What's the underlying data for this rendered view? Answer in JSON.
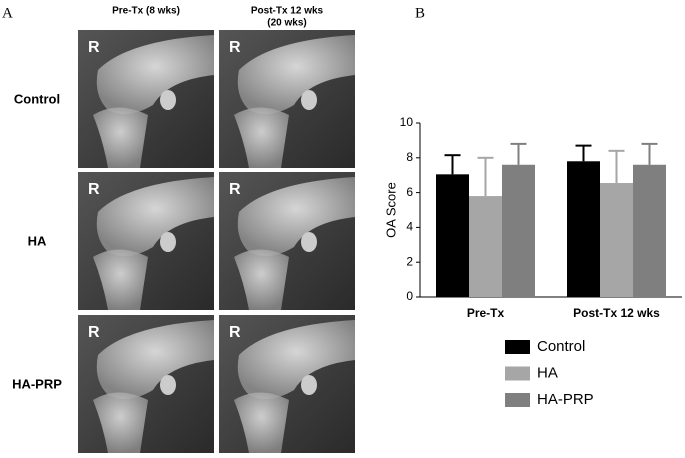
{
  "panel_a": {
    "label": "A",
    "col_headers": [
      {
        "lines": [
          "Pre-Tx (8 wks)"
        ]
      },
      {
        "lines": [
          "Post-Tx 12 wks",
          "(20 wks)"
        ]
      }
    ],
    "row_labels": [
      "Control",
      "HA",
      "HA-PRP"
    ],
    "image_marker": "R"
  },
  "panel_b_label": "B",
  "chart_data": {
    "type": "bar",
    "ylabel": "OA Score",
    "categories": [
      "Pre-Tx",
      "Post-Tx 12 wks"
    ],
    "series": [
      {
        "name": "Control",
        "color": "#000000",
        "values": [
          7.05,
          7.8
        ],
        "errors": [
          1.1,
          0.9
        ]
      },
      {
        "name": "HA",
        "color": "#a6a6a6",
        "values": [
          5.8,
          6.55
        ],
        "errors": [
          2.2,
          1.85
        ]
      },
      {
        "name": "HA-PRP",
        "color": "#7f7f7f",
        "values": [
          7.6,
          7.6
        ],
        "errors": [
          1.2,
          1.2
        ]
      }
    ],
    "ylim": [
      0,
      10
    ],
    "yticks": [
      0,
      2,
      4,
      6,
      8,
      10
    ]
  }
}
